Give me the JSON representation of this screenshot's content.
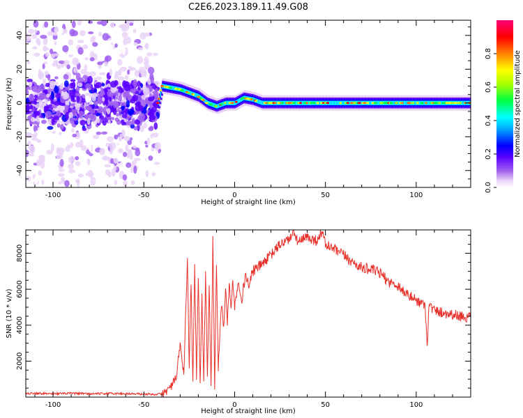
{
  "title": "C2E6.2023.189.11.49.G08",
  "colors": {
    "snr_line": "#e8302a",
    "frame": "#000000",
    "colormap": [
      "#ffffff",
      "#e4c8f6",
      "#b27cf0",
      "#8a2be2",
      "#5000ff",
      "#0000ff",
      "#00b4ff",
      "#00ffff",
      "#00ff40",
      "#aaff00",
      "#ffff00",
      "#ff8000",
      "#ff0000",
      "#ff0077"
    ]
  },
  "chart_data": [
    {
      "type": "heatmap",
      "xlabel": "Height of straight line (km)",
      "ylabel": "Frequency (Hz)",
      "xlim": [
        -115,
        130
      ],
      "ylim": [
        -50,
        49
      ],
      "xticks": [
        -100,
        -50,
        0,
        50,
        100
      ],
      "yticks": [
        -40,
        -20,
        0,
        20,
        40
      ],
      "grid": false,
      "colorbar": {
        "label": "Normalized spectral amplitude",
        "range": [
          0.0,
          1.0
        ],
        "ticks": [
          "0.0",
          "0.2",
          "0.4",
          "0.6",
          "0.8"
        ]
      },
      "band_center_freq": {
        "x": [
          -115,
          -42,
          -40,
          -35,
          -30,
          -25,
          -20,
          -15,
          -10,
          -5,
          0,
          5,
          10,
          15,
          20,
          130
        ],
        "y": [
          0,
          0,
          10,
          9,
          8,
          6,
          4,
          0,
          -2,
          0,
          0,
          3,
          2,
          0,
          0,
          0
        ]
      }
    },
    {
      "type": "line",
      "xlabel": "Height of straight line (km)",
      "ylabel": "SNR (10 * v/v)",
      "xlim": [
        -115,
        130
      ],
      "ylim": [
        0,
        9300
      ],
      "xticks": [
        -100,
        -50,
        0,
        50,
        100
      ],
      "yticks": [
        2000,
        4000,
        6000,
        8000
      ],
      "grid": false,
      "series": [
        {
          "x": [
            -115,
            -110,
            -100,
            -90,
            -80,
            -70,
            -60,
            -50,
            -45,
            -40,
            -38,
            -35,
            -32,
            -30,
            -28,
            -26,
            -25,
            -24,
            -23,
            -22,
            -21,
            -20,
            -19,
            -18,
            -17,
            -16,
            -15,
            -14,
            -13,
            -12,
            -11,
            -10,
            -9,
            -8,
            -7,
            -6,
            -5,
            -4,
            -3,
            -2,
            -1,
            0,
            2,
            4,
            6,
            8,
            10,
            15,
            20,
            25,
            30,
            33,
            35,
            40,
            45,
            48,
            50,
            55,
            60,
            65,
            70,
            75,
            80,
            85,
            90,
            95,
            100,
            105,
            106,
            107,
            108,
            110,
            115,
            120,
            125,
            130
          ],
          "y": [
            200,
            220,
            190,
            210,
            180,
            200,
            190,
            170,
            150,
            180,
            300,
            600,
            1100,
            3000,
            1200,
            7800,
            1500,
            6500,
            800,
            7200,
            1200,
            6800,
            700,
            5600,
            900,
            7000,
            1200,
            6200,
            400,
            8800,
            600,
            7500,
            1500,
            4000,
            5200,
            3800,
            6000,
            4200,
            6200,
            5100,
            6500,
            5000,
            6500,
            5500,
            6800,
            6200,
            7000,
            7400,
            7900,
            8500,
            8800,
            9100,
            8600,
            8900,
            8700,
            9200,
            8500,
            8200,
            7900,
            7500,
            7200,
            7100,
            6900,
            6400,
            6200,
            5700,
            5400,
            5100,
            2700,
            5300,
            5000,
            4800,
            4700,
            4600,
            4500,
            4400
          ]
        }
      ]
    }
  ]
}
